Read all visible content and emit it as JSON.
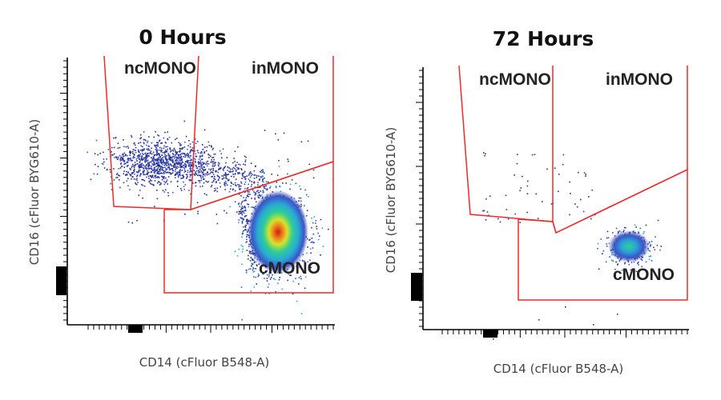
{
  "chart_data": [
    {
      "type": "scatter",
      "title": "0 Hours",
      "xlabel": "CD14 (cFluor B548-A)",
      "ylabel": "CD16 (cFluor BYG610-A)",
      "xscale": "logicle",
      "yscale": "logicle",
      "gates": [
        "ncMONO",
        "inMONO",
        "cMONO"
      ],
      "populations": [
        {
          "name": "ncMONO",
          "density": "high"
        },
        {
          "name": "inMONO",
          "density": "medium"
        },
        {
          "name": "cMONO",
          "density": "very high"
        }
      ]
    },
    {
      "type": "scatter",
      "title": "72 Hours",
      "xlabel": "CD14 (cFluor B548-A)",
      "ylabel": "CD16 (cFluor BYG610-A)",
      "xscale": "logicle",
      "yscale": "logicle",
      "gates": [
        "ncMONO",
        "inMONO",
        "cMONO"
      ],
      "populations": [
        {
          "name": "ncMONO",
          "density": "sparse"
        },
        {
          "name": "inMONO",
          "density": "sparse"
        },
        {
          "name": "cMONO",
          "density": "high"
        }
      ]
    }
  ],
  "colors": {
    "gate": "#ee2a2a",
    "density_scale": [
      "#2b2f8f",
      "#3a55c8",
      "#2aa7d6",
      "#2ed19a",
      "#d9e22a",
      "#f28a1f",
      "#d21f14"
    ]
  }
}
